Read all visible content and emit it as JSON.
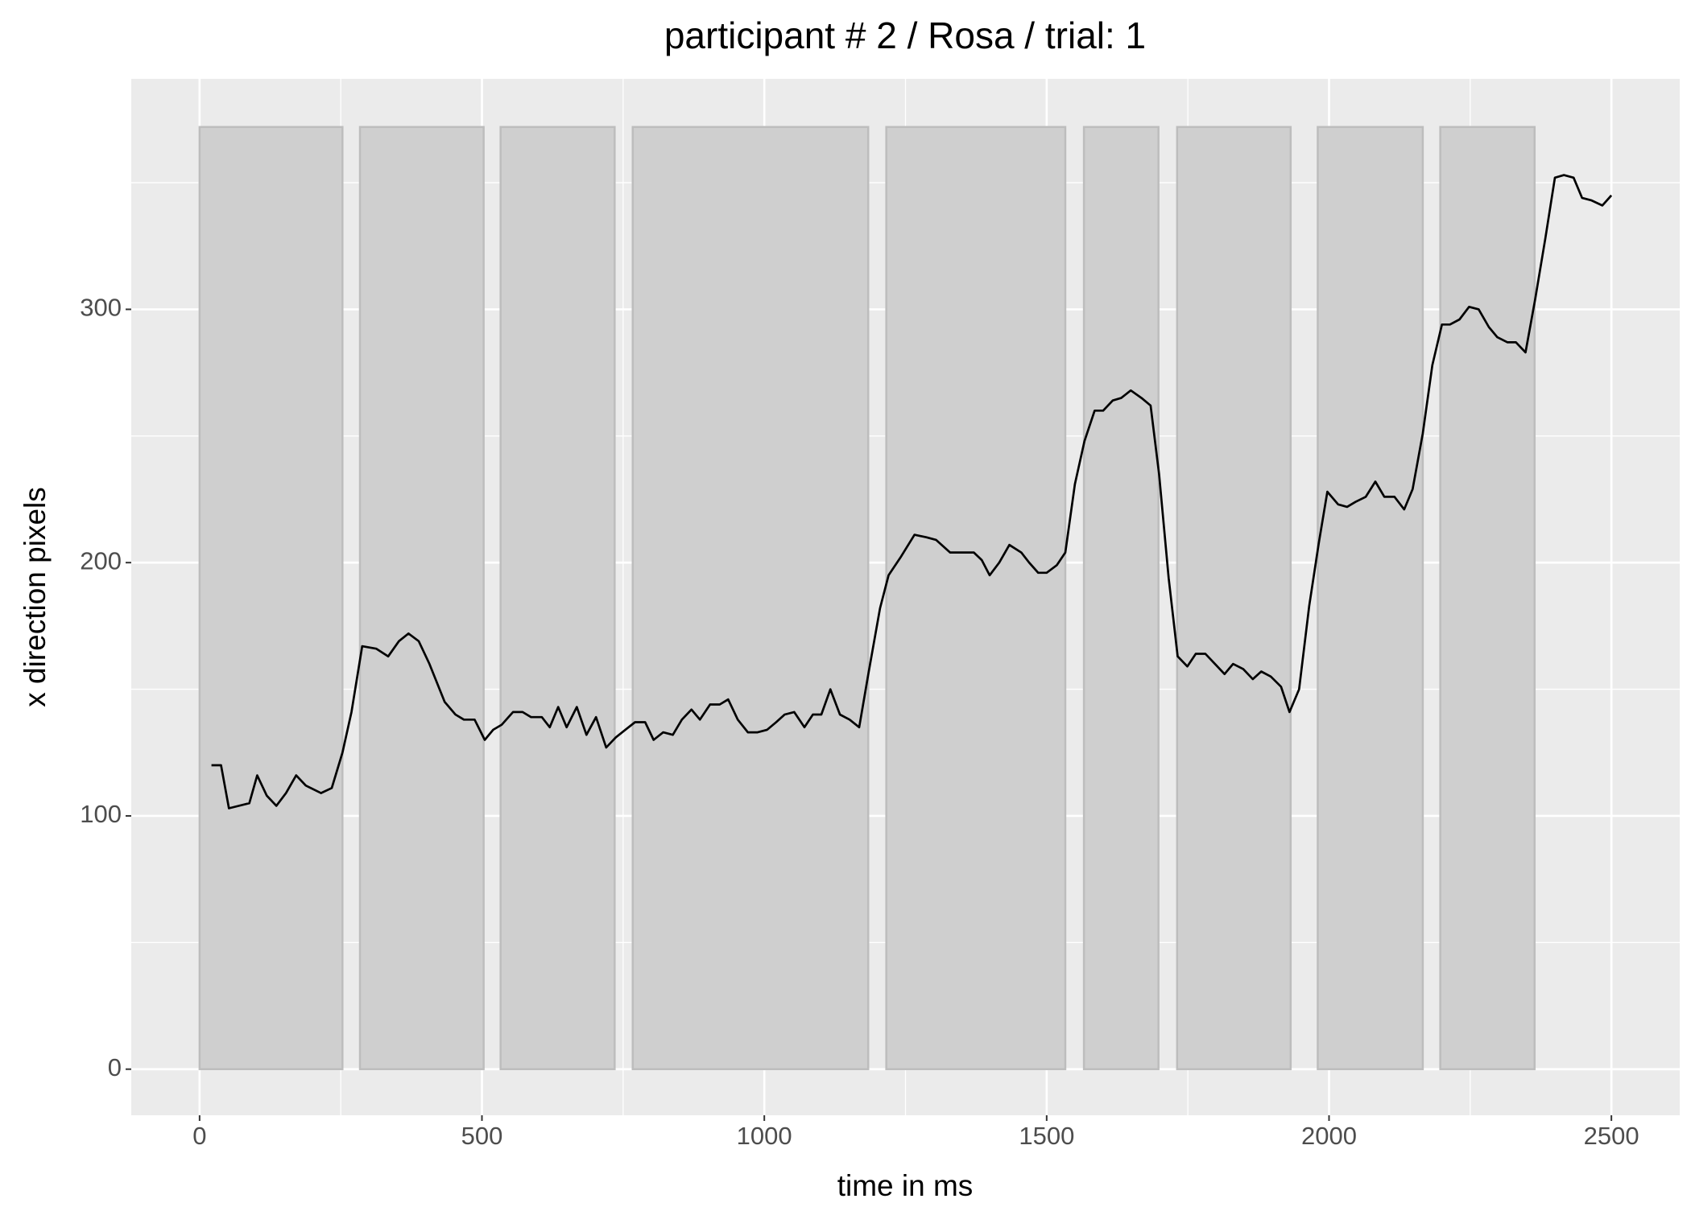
{
  "chart_data": {
    "type": "line",
    "title": "participant # 2  /  Rosa / trial: 1",
    "xlabel": "time in ms",
    "ylabel": "x direction pixels",
    "xlim": [
      -121,
      2621
    ],
    "ylim": [
      -18.2,
      391
    ],
    "xticks": [
      0,
      500,
      1000,
      1500,
      2000,
      2500
    ],
    "yticks": [
      0,
      100,
      200,
      300
    ],
    "xminor_ticks": [
      250,
      750,
      1250,
      1750,
      2250
    ],
    "yminor_ticks": [
      50,
      150,
      250,
      350
    ],
    "grid": true,
    "color": "#000000",
    "interval_color": "#cfcfcf",
    "interval_ymin": 0,
    "interval_ymax": 372,
    "intervals": [
      {
        "start": 0,
        "end": 253
      },
      {
        "start": 284,
        "end": 503
      },
      {
        "start": 533,
        "end": 735
      },
      {
        "start": 767,
        "end": 1184
      },
      {
        "start": 1216,
        "end": 1533
      },
      {
        "start": 1566,
        "end": 1698
      },
      {
        "start": 1731,
        "end": 1932
      },
      {
        "start": 1980,
        "end": 2166
      },
      {
        "start": 2197,
        "end": 2364
      }
    ],
    "x": [
      21,
      38,
      52,
      88,
      102,
      119,
      136,
      153,
      171,
      188,
      215,
      234,
      253,
      269,
      288,
      313,
      334,
      353,
      370,
      388,
      407,
      434,
      453,
      468,
      487,
      505,
      520,
      535,
      555,
      572,
      587,
      606,
      620,
      635,
      650,
      668,
      685,
      702,
      720,
      737,
      754,
      771,
      789,
      804,
      821,
      838,
      854,
      871,
      886,
      904,
      921,
      936,
      953,
      971,
      988,
      1005,
      1021,
      1036,
      1053,
      1071,
      1086,
      1101,
      1117,
      1134,
      1151,
      1168,
      1185,
      1205,
      1220,
      1241,
      1266,
      1287,
      1304,
      1329,
      1354,
      1371,
      1385,
      1399,
      1416,
      1434,
      1455,
      1469,
      1485,
      1500,
      1518,
      1533,
      1550,
      1567,
      1585,
      1600,
      1617,
      1632,
      1649,
      1668,
      1684,
      1699,
      1716,
      1732,
      1749,
      1764,
      1781,
      1798,
      1815,
      1830,
      1848,
      1865,
      1880,
      1897,
      1915,
      1930,
      1947,
      1965,
      1982,
      1997,
      2016,
      2032,
      2047,
      2065,
      2082,
      2098,
      2116,
      2133,
      2148,
      2166,
      2183,
      2200,
      2214,
      2231,
      2248,
      2265,
      2283,
      2298,
      2316,
      2331,
      2348,
      2365,
      2383,
      2400,
      2416,
      2433,
      2448,
      2465,
      2484,
      2500
    ],
    "values": [
      120,
      120,
      103,
      105,
      116,
      108,
      104,
      109,
      116,
      112,
      109,
      111,
      125,
      141,
      167,
      166,
      163,
      169,
      172,
      169,
      160,
      145,
      140,
      138,
      138,
      130,
      134,
      136,
      141,
      141,
      139,
      139,
      135,
      143,
      135,
      143,
      132,
      139,
      127,
      131,
      134,
      137,
      137,
      130,
      133,
      132,
      138,
      142,
      138,
      144,
      144,
      146,
      138,
      133,
      133,
      134,
      137,
      140,
      141,
      135,
      140,
      140,
      150,
      140,
      138,
      135,
      157,
      182,
      195,
      202,
      211,
      210,
      209,
      204,
      204,
      204,
      201,
      195,
      200,
      207,
      204,
      200,
      196,
      196,
      199,
      204,
      231,
      248,
      260,
      260,
      264,
      265,
      268,
      265,
      262,
      235,
      194,
      163,
      159,
      164,
      164,
      160,
      156,
      160,
      158,
      154,
      157,
      155,
      151,
      141,
      150,
      183,
      208,
      228,
      223,
      222,
      224,
      226,
      232,
      226,
      226,
      221,
      229,
      251,
      278,
      294,
      294,
      296,
      301,
      300,
      293,
      289,
      287,
      287,
      283,
      304,
      328,
      352,
      353,
      352,
      344,
      343,
      341,
      345
    ]
  }
}
